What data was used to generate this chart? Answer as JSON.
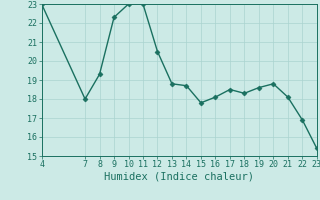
{
  "x": [
    4,
    7,
    8,
    9,
    10,
    11,
    12,
    13,
    14,
    15,
    16,
    17,
    18,
    19,
    20,
    21,
    22,
    23
  ],
  "y": [
    23,
    18,
    19.3,
    22.3,
    23,
    23,
    20.5,
    18.8,
    18.7,
    17.8,
    18.1,
    18.5,
    18.3,
    18.6,
    18.8,
    18.1,
    16.9,
    15.4
  ],
  "line_color": "#1a7060",
  "marker_color": "#1a7060",
  "bg_color": "#cceae6",
  "grid_color": "#aad4d0",
  "xlabel": "Humidex (Indice chaleur)",
  "xlim": [
    4,
    23
  ],
  "ylim": [
    15,
    23
  ],
  "xticks": [
    4,
    7,
    8,
    9,
    10,
    11,
    12,
    13,
    14,
    15,
    16,
    17,
    18,
    19,
    20,
    21,
    22,
    23
  ],
  "yticks": [
    15,
    16,
    17,
    18,
    19,
    20,
    21,
    22,
    23
  ],
  "tick_color": "#1a7060",
  "label_fontsize": 7.5,
  "tick_fontsize": 6,
  "marker_size": 2.5,
  "line_width": 1.0
}
